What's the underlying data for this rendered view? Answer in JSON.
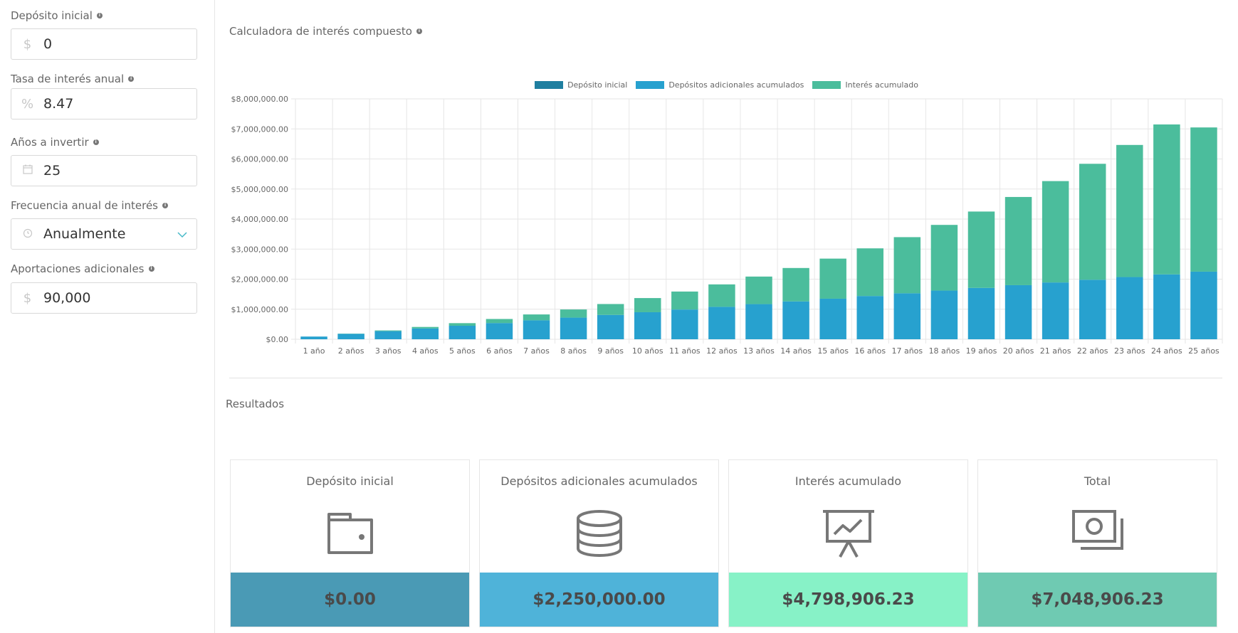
{
  "inputs": {
    "initial_deposit": {
      "label": "Depósito inicial",
      "prefix": "$",
      "value": "0"
    },
    "interest_rate": {
      "label": "Tasa de interés anual",
      "prefix": "%",
      "value": "8.47"
    },
    "years": {
      "label": "Años a invertir",
      "prefix": "calendar-icon",
      "value": "25"
    },
    "frequency": {
      "label": "Frecuencia anual de interés",
      "prefix": "clock-icon",
      "value": "Anualmente"
    },
    "contributions": {
      "label": "Aportaciones adicionales",
      "prefix": "$",
      "value": "90,000"
    }
  },
  "chart_section": {
    "title": "Calculadora de interés compuesto"
  },
  "results_section": {
    "title": "Resultados"
  },
  "colors": {
    "initial": "#1f7fa0",
    "contributions": "#27a1cf",
    "interest": "#4bbd9c",
    "card_initial": "#4a9ab5",
    "card_contrib": "#4fb3d9",
    "card_interest": "#87f2c7",
    "card_total": "#6fcab2"
  },
  "chart_data": {
    "type": "bar",
    "stacked": true,
    "categories": [
      "1 año",
      "2 años",
      "3 años",
      "4 años",
      "5 años",
      "6 años",
      "7 años",
      "8 años",
      "9 años",
      "10 años",
      "11 años",
      "12 años",
      "13 años",
      "14 años",
      "15 años",
      "16 años",
      "17 años",
      "18 años",
      "19 años",
      "20 años",
      "21 años",
      "22 años",
      "23 años",
      "24 años",
      "25 años"
    ],
    "series": [
      {
        "name": "Depósito inicial",
        "values": [
          0,
          0,
          0,
          0,
          0,
          0,
          0,
          0,
          0,
          0,
          0,
          0,
          0,
          0,
          0,
          0,
          0,
          0,
          0,
          0,
          0,
          0,
          0,
          0,
          0
        ]
      },
      {
        "name": "Depósitos adicionales acumulados",
        "values": [
          90000,
          180000,
          270000,
          360000,
          450000,
          540000,
          630000,
          720000,
          810000,
          900000,
          990000,
          1080000,
          1170000,
          1260000,
          1350000,
          1440000,
          1530000,
          1620000,
          1710000,
          1800000,
          1890000,
          1980000,
          2070000,
          2160000,
          2250000
        ]
      },
      {
        "name": "Interés acumulado",
        "values": [
          0,
          7600,
          23900,
          49700,
          86300,
          134700,
          196000,
          271400,
          362500,
          470800,
          598000,
          745900,
          916400,
          1111600,
          1333700,
          1585200,
          1868300,
          2185800,
          2540400,
          2935200,
          3373600,
          3859200,
          4396200,
          4988600,
          4798906
        ]
      }
    ],
    "yticks": [
      "$0.00",
      "$1,000,000.00",
      "$2,000,000.00",
      "$3,000,000.00",
      "$4,000,000.00",
      "$5,000,000.00",
      "$6,000,000.00",
      "$7,000,000.00",
      "$8,000,000.00"
    ],
    "ylim": [
      0,
      8000000
    ],
    "grid": true,
    "legend": "top-center"
  },
  "results": [
    {
      "title": "Depósito inicial",
      "icon": "wallet-icon",
      "value": "$0.00"
    },
    {
      "title": "Depósitos adicionales acumulados",
      "icon": "coins-icon",
      "value": "$2,250,000.00"
    },
    {
      "title": "Interés acumulado",
      "icon": "presentation-chart-icon",
      "value": "$4,798,906.23"
    },
    {
      "title": "Total",
      "icon": "money-bill-icon",
      "value": "$7,048,906.23"
    }
  ]
}
